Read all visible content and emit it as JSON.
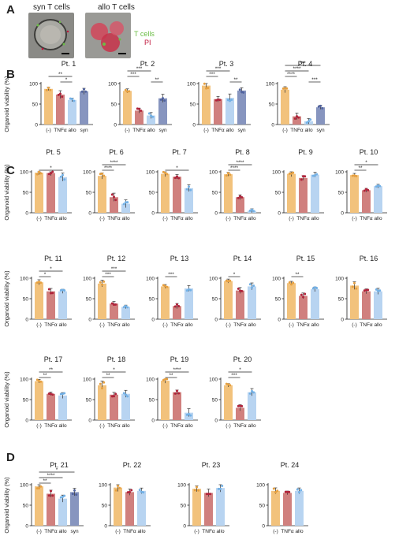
{
  "panel_labels": {
    "A": "A",
    "B": "B",
    "C": "C",
    "D": "D"
  },
  "image_titles": {
    "syn": "syn T cells",
    "allo": "allo T cells"
  },
  "image_legend": {
    "tcells": "T cells",
    "pi": "PI"
  },
  "ylabel": "Organoid viability (%)",
  "colors": {
    "neg": "#f2c27c",
    "tnf": "#d0807e",
    "allo": "#b8d4f1",
    "syn": "#8795bf",
    "pt_neg": "#e6a040",
    "pt_tnf": "#b0233a",
    "pt_allo": "#73b1e6",
    "pt_syn": "#5264a0",
    "tcells_text": "#6bbd45",
    "pi_text": "#c0143a"
  },
  "chart_data": [
    {
      "title": "Pt. 1",
      "type": "bar",
      "categories": [
        "(-)",
        "TNFα",
        "allo",
        "syn"
      ],
      "values": [
        87,
        73,
        60,
        81
      ],
      "ylim": [
        0,
        100
      ],
      "sig": [
        {
          "from": 0,
          "to": 2,
          "label": "**"
        },
        {
          "from": 1,
          "to": 2,
          "label": "*"
        }
      ]
    },
    {
      "title": "Pt. 2",
      "type": "bar",
      "categories": [
        "(-)",
        "TNFα",
        "allo",
        "syn"
      ],
      "values": [
        82,
        34,
        22,
        64
      ],
      "ylim": [
        0,
        100
      ],
      "sig": [
        {
          "from": 0,
          "to": 2,
          "label": "***"
        },
        {
          "from": 0,
          "to": 1,
          "label": "***"
        },
        {
          "from": 2,
          "to": 3,
          "label": "**"
        }
      ]
    },
    {
      "title": "Pt. 3",
      "type": "bar",
      "categories": [
        "(-)",
        "TNFα",
        "allo",
        "syn"
      ],
      "values": [
        95,
        62,
        65,
        83
      ],
      "ylim": [
        0,
        100
      ],
      "sig": [
        {
          "from": 0,
          "to": 2,
          "label": "***"
        },
        {
          "from": 0,
          "to": 1,
          "label": "***"
        },
        {
          "from": 2,
          "to": 3,
          "label": "**"
        }
      ]
    },
    {
      "title": "Pt. 4",
      "type": "bar",
      "categories": [
        "(-)",
        "TNFα",
        "allo",
        "syn"
      ],
      "values": [
        85,
        20,
        8,
        42
      ],
      "ylim": [
        0,
        100
      ],
      "sig": [
        {
          "from": 0,
          "to": 3,
          "label": "***"
        },
        {
          "from": 0,
          "to": 2,
          "label": "****"
        },
        {
          "from": 0,
          "to": 1,
          "label": "****"
        },
        {
          "from": 2,
          "to": 3,
          "label": "***"
        }
      ]
    },
    {
      "title": "Pt. 5",
      "type": "bar",
      "categories": [
        "(-)",
        "TNFα",
        "allo"
      ],
      "values": [
        98,
        97,
        87
      ],
      "ylim": [
        0,
        100
      ],
      "sig": [
        {
          "from": 0,
          "to": 2,
          "label": "*"
        }
      ]
    },
    {
      "title": "Pt. 6",
      "type": "bar",
      "categories": [
        "(-)",
        "TNFα",
        "allo"
      ],
      "values": [
        90,
        38,
        22
      ],
      "ylim": [
        0,
        100
      ],
      "sig": [
        {
          "from": 0,
          "to": 2,
          "label": "****"
        },
        {
          "from": 0,
          "to": 1,
          "label": "****"
        }
      ]
    },
    {
      "title": "Pt. 7",
      "type": "bar",
      "categories": [
        "(-)",
        "TNFα",
        "allo"
      ],
      "values": [
        95,
        88,
        60
      ],
      "ylim": [
        0,
        100
      ],
      "sig": [
        {
          "from": 0,
          "to": 2,
          "label": "*"
        }
      ]
    },
    {
      "title": "Pt. 8",
      "type": "bar",
      "categories": [
        "(-)",
        "TNFα",
        "allo"
      ],
      "values": [
        94,
        38,
        5
      ],
      "ylim": [
        0,
        100
      ],
      "sig": [
        {
          "from": 0,
          "to": 2,
          "label": "****"
        },
        {
          "from": 0,
          "to": 1,
          "label": "****"
        }
      ]
    },
    {
      "title": "Pt. 9",
      "type": "bar",
      "categories": [
        "(-)",
        "TNFα",
        "allo"
      ],
      "values": [
        95,
        85,
        93
      ],
      "ylim": [
        0,
        100
      ],
      "sig": []
    },
    {
      "title": "Pt. 10",
      "type": "bar",
      "categories": [
        "(-)",
        "TNFα",
        "allo"
      ],
      "values": [
        92,
        55,
        65
      ],
      "ylim": [
        0,
        100
      ],
      "sig": [
        {
          "from": 0,
          "to": 2,
          "label": "*"
        },
        {
          "from": 0,
          "to": 1,
          "label": "**"
        }
      ]
    },
    {
      "title": "Pt. 11",
      "type": "bar",
      "categories": [
        "(-)",
        "TNFα",
        "allo"
      ],
      "values": [
        90,
        68,
        68
      ],
      "ylim": [
        0,
        100
      ],
      "sig": [
        {
          "from": 0,
          "to": 2,
          "label": "*"
        },
        {
          "from": 0,
          "to": 1,
          "label": "*"
        }
      ]
    },
    {
      "title": "Pt. 12",
      "type": "bar",
      "categories": [
        "(-)",
        "TNFα",
        "allo"
      ],
      "values": [
        87,
        38,
        30
      ],
      "ylim": [
        0,
        100
      ],
      "sig": [
        {
          "from": 0,
          "to": 2,
          "label": "***"
        },
        {
          "from": 0,
          "to": 1,
          "label": "***"
        }
      ]
    },
    {
      "title": "Pt. 13",
      "type": "bar",
      "categories": [
        "(-)",
        "TNFα",
        "allo"
      ],
      "values": [
        80,
        32,
        75
      ],
      "ylim": [
        0,
        100
      ],
      "sig": [
        {
          "from": 0,
          "to": 1,
          "label": "***"
        }
      ]
    },
    {
      "title": "Pt. 14",
      "type": "bar",
      "categories": [
        "(-)",
        "TNFα",
        "allo"
      ],
      "values": [
        93,
        70,
        80
      ],
      "ylim": [
        0,
        100
      ],
      "sig": [
        {
          "from": 0,
          "to": 1,
          "label": "*"
        }
      ]
    },
    {
      "title": "Pt. 15",
      "type": "bar",
      "categories": [
        "(-)",
        "TNFα",
        "allo"
      ],
      "values": [
        88,
        57,
        73
      ],
      "ylim": [
        0,
        100
      ],
      "sig": [
        {
          "from": 0,
          "to": 1,
          "label": "**"
        }
      ]
    },
    {
      "title": "Pt. 16",
      "type": "bar",
      "categories": [
        "(-)",
        "TNFα",
        "allo"
      ],
      "values": [
        82,
        68,
        68
      ],
      "ylim": [
        0,
        100
      ],
      "sig": []
    },
    {
      "title": "Pt. 17",
      "type": "bar",
      "categories": [
        "(-)",
        "TNFα",
        "allo"
      ],
      "values": [
        95,
        64,
        60
      ],
      "ylim": [
        0,
        100
      ],
      "sig": [
        {
          "from": 0,
          "to": 2,
          "label": "**"
        },
        {
          "from": 0,
          "to": 1,
          "label": "**"
        }
      ]
    },
    {
      "title": "Pt. 18",
      "type": "bar",
      "categories": [
        "(-)",
        "TNFα",
        "allo"
      ],
      "values": [
        85,
        62,
        64
      ],
      "ylim": [
        0,
        100
      ],
      "sig": [
        {
          "from": 0,
          "to": 2,
          "label": "*"
        },
        {
          "from": 0,
          "to": 1,
          "label": "**"
        }
      ]
    },
    {
      "title": "Pt. 19",
      "type": "bar",
      "categories": [
        "(-)",
        "TNFα",
        "allo"
      ],
      "values": [
        96,
        68,
        18
      ],
      "ylim": [
        0,
        100
      ],
      "sig": [
        {
          "from": 0,
          "to": 2,
          "label": "****"
        },
        {
          "from": 0,
          "to": 1,
          "label": "**"
        }
      ]
    },
    {
      "title": "Pt. 20",
      "type": "bar",
      "categories": [
        "(-)",
        "TNFα",
        "allo"
      ],
      "values": [
        85,
        30,
        68
      ],
      "ylim": [
        0,
        100
      ],
      "sig": [
        {
          "from": 0,
          "to": 2,
          "label": "*"
        },
        {
          "from": 0,
          "to": 1,
          "label": "***"
        }
      ]
    },
    {
      "title": "Pt. 21",
      "type": "bar",
      "categories": [
        "(-)",
        "TNFα",
        "allo",
        "syn"
      ],
      "values": [
        96,
        78,
        66,
        82
      ],
      "ylim": [
        0,
        100
      ],
      "sig": [
        {
          "from": 0,
          "to": 3,
          "label": "*"
        },
        {
          "from": 0,
          "to": 2,
          "label": "****"
        },
        {
          "from": 0,
          "to": 1,
          "label": "**"
        }
      ]
    },
    {
      "title": "Pt. 22",
      "type": "bar",
      "categories": [
        "(-)",
        "TNFα",
        "allo"
      ],
      "values": [
        93,
        82,
        85
      ],
      "ylim": [
        0,
        100
      ],
      "sig": []
    },
    {
      "title": "Pt. 23",
      "type": "bar",
      "categories": [
        "(-)",
        "TNFα",
        "allo"
      ],
      "values": [
        90,
        80,
        92
      ],
      "ylim": [
        0,
        100
      ],
      "sig": []
    },
    {
      "title": "Pt. 24",
      "type": "bar",
      "categories": [
        "(-)",
        "TNFα",
        "allo"
      ],
      "values": [
        85,
        80,
        85
      ],
      "ylim": [
        0,
        100
      ],
      "sig": []
    }
  ]
}
